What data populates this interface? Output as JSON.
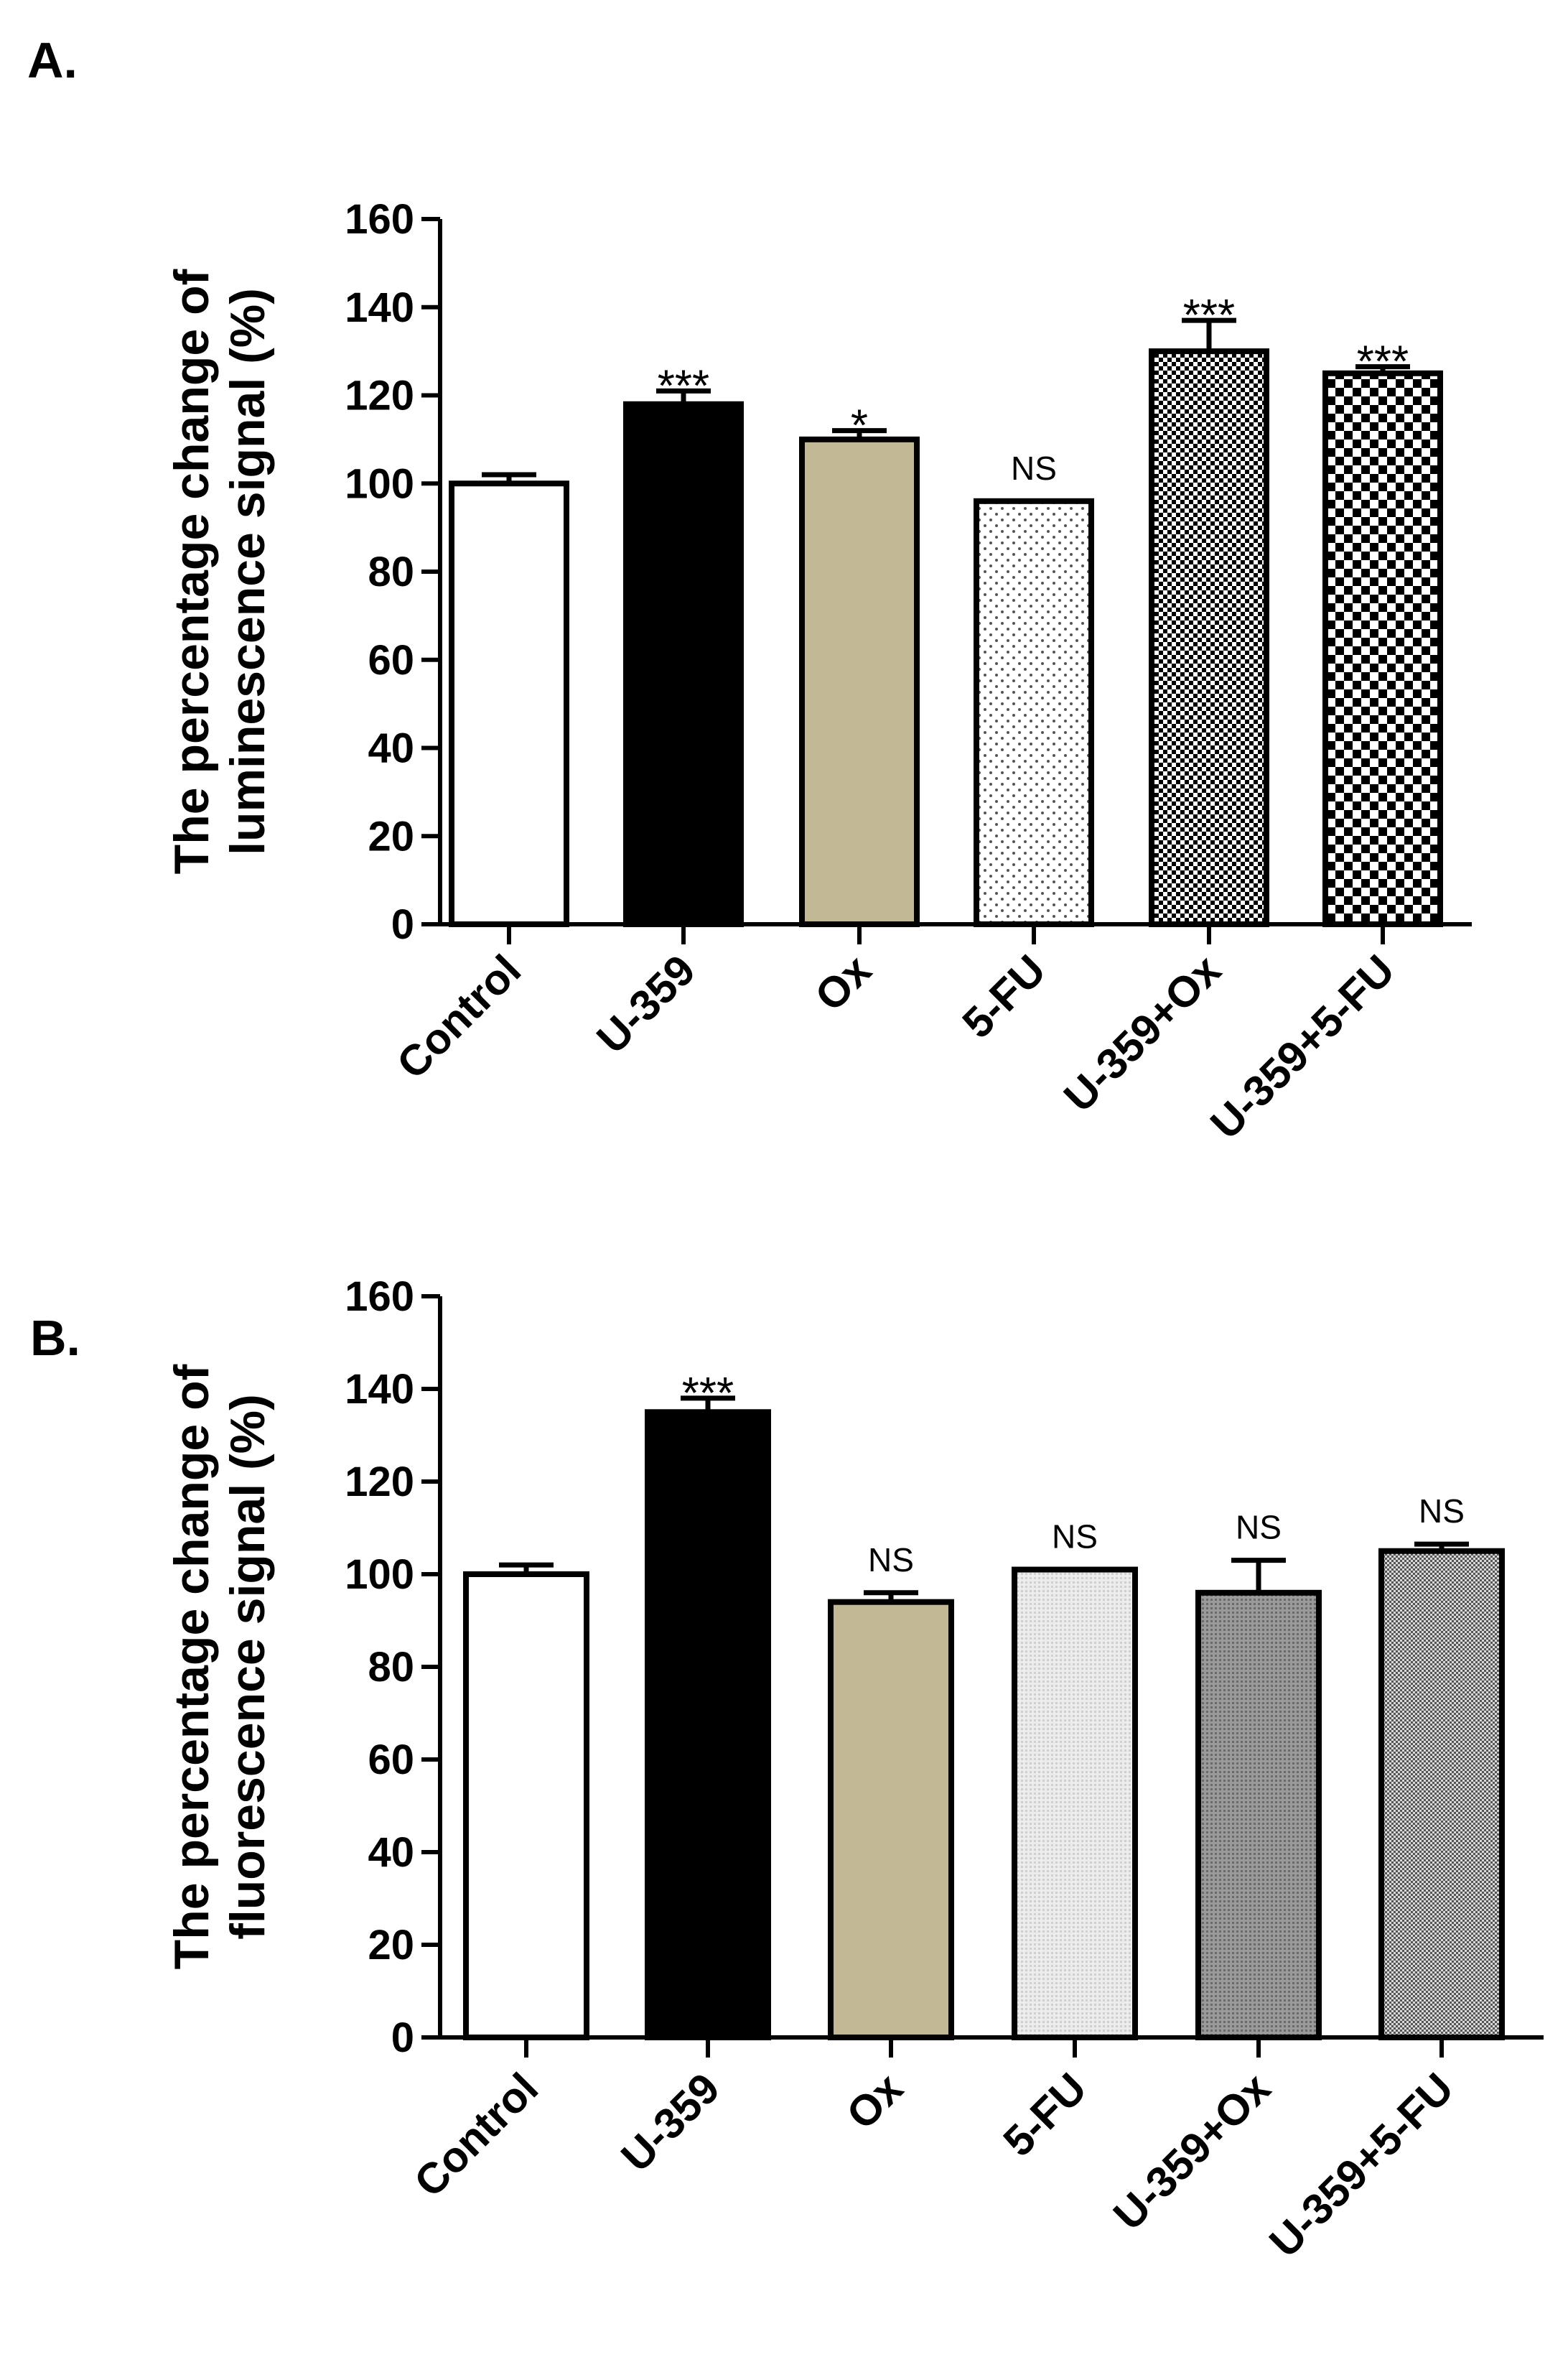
{
  "chart_data": [
    {
      "type": "bar",
      "panel": "A.",
      "ylabel_lines": [
        "The percentage change of",
        "luminescence signal (%)"
      ],
      "ylim": [
        0,
        160
      ],
      "yticks": [
        "0",
        "20",
        "40",
        "60",
        "80",
        "100",
        "120",
        "140",
        "160"
      ],
      "categories": [
        "Control",
        "U-359",
        "Ox",
        "5-FU",
        "U-359+Ox",
        "U-359+5-FU"
      ],
      "values": [
        100,
        118,
        110,
        96,
        130,
        125
      ],
      "errors": [
        2,
        3,
        2,
        0,
        7,
        1.5
      ],
      "significance": [
        "",
        "***",
        "*",
        "NS",
        "***",
        "***"
      ],
      "fills": [
        "white",
        "black",
        "tan",
        "dots",
        "fine-checker",
        "checker"
      ],
      "colors": {
        "tan": "#c2b896",
        "black": "#000000",
        "white": "#ffffff"
      }
    },
    {
      "type": "bar",
      "panel": "B.",
      "ylabel_lines": [
        "The percentage change of",
        "fluorescence signal (%)"
      ],
      "ylim": [
        0,
        160
      ],
      "yticks": [
        "0",
        "20",
        "40",
        "60",
        "80",
        "100",
        "120",
        "140",
        "160"
      ],
      "categories": [
        "Control",
        "U-359",
        "Ox",
        "5-FU",
        "U-359+Ox",
        "U-359+5-FU"
      ],
      "values": [
        100,
        135,
        94,
        101,
        96,
        105
      ],
      "errors": [
        2,
        3,
        2,
        0,
        7,
        1.5
      ],
      "significance": [
        "",
        "***",
        "NS",
        "NS",
        "NS",
        "NS"
      ],
      "fills": [
        "white",
        "black",
        "tan",
        "light-gray",
        "dark-gray",
        "gray-checker"
      ],
      "colors": {
        "tan": "#c2b896",
        "black": "#000000",
        "white": "#ffffff",
        "light_gray": "#e2e2e2",
        "dark_gray": "#8a8a8a"
      }
    }
  ]
}
